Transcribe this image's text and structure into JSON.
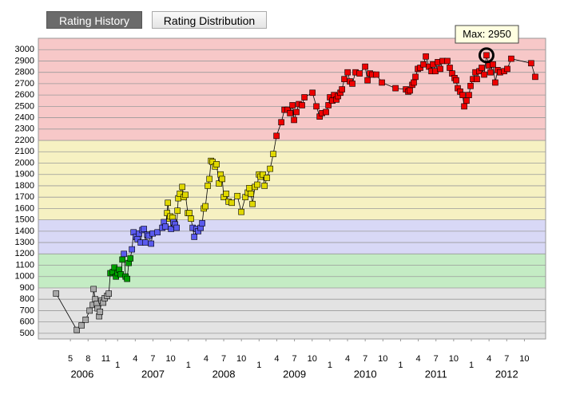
{
  "tabs": [
    {
      "label": "Rating History",
      "selected": true
    },
    {
      "label": "Rating Distribution",
      "selected": false
    }
  ],
  "chart_data": {
    "type": "line",
    "annotation": "Max: 2950",
    "x": [
      2006.131,
      2006.424,
      2006.492,
      2006.549,
      2006.605,
      2006.65,
      2006.661,
      2006.684,
      2006.707,
      2006.718,
      2006.74,
      2006.752,
      2006.774,
      2006.797,
      2006.819,
      2006.853,
      2006.876,
      2006.898,
      2006.932,
      2006.955,
      2006.977,
      2007.0,
      2007.023,
      2007.045,
      2007.068,
      2007.09,
      2007.113,
      2007.135,
      2007.158,
      2007.181,
      2007.203,
      2007.226,
      2007.26,
      2007.282,
      2007.305,
      2007.327,
      2007.35,
      2007.372,
      2007.395,
      2007.418,
      2007.44,
      2007.474,
      2007.497,
      2007.564,
      2007.632,
      2007.655,
      2007.677,
      2007.7,
      2007.711,
      2007.734,
      2007.745,
      2007.756,
      2007.779,
      2007.79,
      2007.813,
      2007.835,
      2007.847,
      2007.858,
      2007.88,
      2007.914,
      2007.937,
      2007.959,
      2007.993,
      2008.016,
      2008.038,
      2008.061,
      2008.084,
      2008.117,
      2008.14,
      2008.174,
      2008.196,
      2008.219,
      2008.242,
      2008.275,
      2008.298,
      2008.321,
      2008.343,
      2008.377,
      2008.4,
      2008.433,
      2008.456,
      2008.479,
      2008.501,
      2008.535,
      2008.569,
      2008.614,
      2008.693,
      2008.749,
      2008.806,
      2008.84,
      2008.862,
      2008.885,
      2008.907,
      2008.941,
      2008.975,
      2008.998,
      2009.02,
      2009.054,
      2009.077,
      2009.111,
      2009.156,
      2009.201,
      2009.246,
      2009.314,
      2009.359,
      2009.404,
      2009.438,
      2009.472,
      2009.494,
      2009.528,
      2009.562,
      2009.607,
      2009.641,
      2009.754,
      2009.81,
      2009.856,
      2009.889,
      2009.946,
      2009.98,
      2010.002,
      2010.036,
      2010.059,
      2010.093,
      2010.115,
      2010.149,
      2010.172,
      2010.205,
      2010.251,
      2010.284,
      2010.318,
      2010.363,
      2010.42,
      2010.499,
      2010.533,
      2010.567,
      2010.601,
      2010.657,
      2010.736,
      2010.928,
      2011.075,
      2011.108,
      2011.131,
      2011.165,
      2011.187,
      2011.21,
      2011.244,
      2011.278,
      2011.323,
      2011.357,
      2011.402,
      2011.436,
      2011.458,
      2011.492,
      2011.526,
      2011.56,
      2011.594,
      2011.661,
      2011.695,
      2011.729,
      2011.763,
      2011.786,
      2011.808,
      2011.842,
      2011.876,
      2011.899,
      2011.932,
      2011.966,
      2011.989,
      2012.023,
      2012.057,
      2012.079,
      2012.113,
      2012.147,
      2012.181,
      2012.214,
      2012.248,
      2012.271,
      2012.305,
      2012.338,
      2012.372,
      2012.406,
      2012.463,
      2012.508,
      2012.564,
      2012.846,
      2012.903
    ],
    "values": [
      850,
      530,
      570,
      620,
      700,
      750,
      890,
      800,
      760,
      720,
      650,
      690,
      790,
      770,
      810,
      830,
      850,
      1030,
      1040,
      1080,
      1000,
      1030,
      1060,
      1020,
      1150,
      1200,
      1000,
      980,
      1120,
      1160,
      1240,
      1390,
      1350,
      1330,
      1380,
      1300,
      1410,
      1420,
      1300,
      1370,
      1360,
      1290,
      1380,
      1390,
      1430,
      1480,
      1440,
      1560,
      1650,
      1510,
      1530,
      1420,
      1520,
      1480,
      1460,
      1430,
      1580,
      1690,
      1730,
      1790,
      1700,
      1720,
      1560,
      1560,
      1510,
      1430,
      1350,
      1420,
      1400,
      1430,
      1470,
      1600,
      1620,
      1800,
      1860,
      2020,
      2010,
      1970,
      1990,
      1820,
      1900,
      1860,
      1700,
      1730,
      1660,
      1650,
      1710,
      1570,
      1700,
      1740,
      1780,
      1730,
      1640,
      1790,
      1810,
      1900,
      1880,
      1900,
      1800,
      1870,
      1950,
      2080,
      2240,
      2360,
      2470,
      2470,
      2440,
      2510,
      2380,
      2450,
      2520,
      2510,
      2580,
      2620,
      2500,
      2410,
      2440,
      2450,
      2510,
      2580,
      2550,
      2600,
      2560,
      2590,
      2620,
      2650,
      2740,
      2800,
      2720,
      2700,
      2800,
      2790,
      2850,
      2730,
      2790,
      2780,
      2780,
      2710,
      2660,
      2650,
      2630,
      2640,
      2690,
      2710,
      2760,
      2830,
      2840,
      2870,
      2940,
      2850,
      2810,
      2870,
      2810,
      2890,
      2830,
      2900,
      2900,
      2840,
      2790,
      2750,
      2730,
      2660,
      2630,
      2600,
      2500,
      2550,
      2600,
      2680,
      2740,
      2800,
      2740,
      2810,
      2840,
      2780,
      2950,
      2860,
      2800,
      2870,
      2710,
      2820,
      2800,
      2810,
      2830,
      2920,
      2880,
      2760
    ],
    "xlim": [
      2005.88,
      2013.05
    ],
    "ylim": [
      450,
      3100
    ],
    "yticks": [
      500,
      600,
      700,
      800,
      900,
      1000,
      1100,
      1200,
      1300,
      1400,
      1500,
      1600,
      1700,
      1800,
      1900,
      2000,
      2100,
      2200,
      2300,
      2400,
      2500,
      2600,
      2700,
      2800,
      2900,
      3000
    ],
    "xticks": [
      {
        "value": 2006.333,
        "label": "5"
      },
      {
        "value": 2006.583,
        "label": "8"
      },
      {
        "value": 2006.833,
        "label": "11"
      },
      {
        "value": 2007,
        "label": "1"
      },
      {
        "value": 2007.25,
        "label": "4"
      },
      {
        "value": 2007.5,
        "label": "7"
      },
      {
        "value": 2007.75,
        "label": "10"
      },
      {
        "value": 2008,
        "label": "1"
      },
      {
        "value": 2008.25,
        "label": "4"
      },
      {
        "value": 2008.5,
        "label": "7"
      },
      {
        "value": 2008.75,
        "label": "10"
      },
      {
        "value": 2009,
        "label": "1"
      },
      {
        "value": 2009.25,
        "label": "4"
      },
      {
        "value": 2009.5,
        "label": "7"
      },
      {
        "value": 2009.75,
        "label": "10"
      },
      {
        "value": 2010,
        "label": "1"
      },
      {
        "value": 2010.25,
        "label": "4"
      },
      {
        "value": 2010.5,
        "label": "7"
      },
      {
        "value": 2010.75,
        "label": "10"
      },
      {
        "value": 2011,
        "label": "1"
      },
      {
        "value": 2011.25,
        "label": "4"
      },
      {
        "value": 2011.5,
        "label": "7"
      },
      {
        "value": 2011.75,
        "label": "10"
      },
      {
        "value": 2012,
        "label": "1"
      },
      {
        "value": 2012.25,
        "label": "4"
      },
      {
        "value": 2012.5,
        "label": "7"
      },
      {
        "value": 2012.75,
        "label": "10"
      }
    ],
    "year_ticks": [
      {
        "value": 2006.5,
        "label": "2006"
      },
      {
        "value": 2007.5,
        "label": "2007"
      },
      {
        "value": 2008.5,
        "label": "2008"
      },
      {
        "value": 2009.5,
        "label": "2009"
      },
      {
        "value": 2010.5,
        "label": "2010"
      },
      {
        "value": 2011.5,
        "label": "2011"
      },
      {
        "value": 2012.5,
        "label": "2012"
      }
    ],
    "grid": true,
    "line_color": "#000000",
    "bands": [
      {
        "from": 450,
        "to": 900,
        "background": "#e3e3e3",
        "color": "#a8a8a8"
      },
      {
        "from": 900,
        "to": 1200,
        "background": "#c4ecc4",
        "color": "#00a000"
      },
      {
        "from": 1200,
        "to": 1500,
        "background": "#d8d8f6",
        "color": "#5a5aee"
      },
      {
        "from": 1500,
        "to": 2200,
        "background": "#f6f1c2",
        "color": "#e0d800"
      },
      {
        "from": 2200,
        "to": 3100,
        "background": "#f7c8c8",
        "color": "#ee0000"
      }
    ]
  }
}
